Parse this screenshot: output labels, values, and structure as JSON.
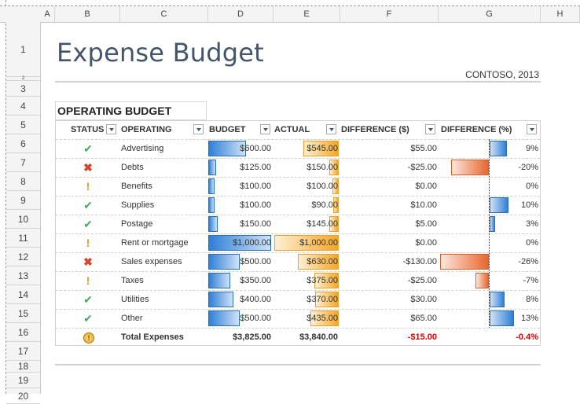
{
  "columns": [
    "A",
    "B",
    "C",
    "D",
    "E",
    "F",
    "G",
    "H"
  ],
  "rows": [
    "1",
    "2",
    "3",
    "4",
    "5",
    "6",
    "7",
    "8",
    "9",
    "10",
    "11",
    "12",
    "13",
    "14",
    "15",
    "16",
    "17",
    "18",
    "19",
    "20"
  ],
  "title": "Expense Budget",
  "company": "CONTOSO, 2013",
  "section": "OPERATING BUDGET",
  "headers": {
    "status": "STATUS",
    "operating": "OPERATING",
    "budget": "BUDGET",
    "actual": "ACTUAL",
    "diff_usd": "DIFFERENCE ($)",
    "diff_pct": "DIFFERENCE (%)"
  },
  "items": [
    {
      "status": "check-icon",
      "name": "Advertising",
      "budget": "$600.00",
      "actual": "$545.00",
      "diff": "$55.00",
      "pct": "9%",
      "budget_v": 600,
      "actual_v": 545,
      "pct_v": 9
    },
    {
      "status": "x-icon",
      "name": "Debts",
      "budget": "$125.00",
      "actual": "$150.00",
      "diff": "-$25.00",
      "pct": "-20%",
      "budget_v": 125,
      "actual_v": 150,
      "pct_v": -20
    },
    {
      "status": "exclamation-icon",
      "name": "Benefits",
      "budget": "$100.00",
      "actual": "$100.00",
      "diff": "$0.00",
      "pct": "0%",
      "budget_v": 100,
      "actual_v": 100,
      "pct_v": 0
    },
    {
      "status": "check-icon",
      "name": "Supplies",
      "budget": "$100.00",
      "actual": "$90.00",
      "diff": "$10.00",
      "pct": "10%",
      "budget_v": 100,
      "actual_v": 90,
      "pct_v": 10
    },
    {
      "status": "check-icon",
      "name": "Postage",
      "budget": "$150.00",
      "actual": "$145.00",
      "diff": "$5.00",
      "pct": "3%",
      "budget_v": 150,
      "actual_v": 145,
      "pct_v": 3
    },
    {
      "status": "exclamation-icon",
      "name": "Rent or mortgage",
      "budget": "$1,000.00",
      "actual": "$1,000.00",
      "diff": "$0.00",
      "pct": "0%",
      "budget_v": 1000,
      "actual_v": 1000,
      "pct_v": 0
    },
    {
      "status": "x-icon",
      "name": "Sales expenses",
      "budget": "$500.00",
      "actual": "$630.00",
      "diff": "-$130.00",
      "pct": "-26%",
      "budget_v": 500,
      "actual_v": 630,
      "pct_v": -26
    },
    {
      "status": "exclamation-icon",
      "name": "Taxes",
      "budget": "$350.00",
      "actual": "$375.00",
      "diff": "-$25.00",
      "pct": "-7%",
      "budget_v": 350,
      "actual_v": 375,
      "pct_v": -7
    },
    {
      "status": "check-icon",
      "name": "Utilities",
      "budget": "$400.00",
      "actual": "$370.00",
      "diff": "$30.00",
      "pct": "8%",
      "budget_v": 400,
      "actual_v": 370,
      "pct_v": 8
    },
    {
      "status": "check-icon",
      "name": "Other",
      "budget": "$500.00",
      "actual": "$435.00",
      "diff": "$65.00",
      "pct": "13%",
      "budget_v": 500,
      "actual_v": 435,
      "pct_v": 13
    }
  ],
  "total": {
    "status": "exclamation-circle-icon",
    "name": "Total Expenses",
    "budget": "$3,825.00",
    "actual": "$3,840.00",
    "diff": "-$15.00",
    "pct": "-0.4%"
  },
  "colors": {
    "title": "#44546a",
    "budget_bar": "#2e7fd6",
    "actual_bar": "#f6a623",
    "negative_bar": "#e8662e",
    "negative_text": "#e00000"
  }
}
